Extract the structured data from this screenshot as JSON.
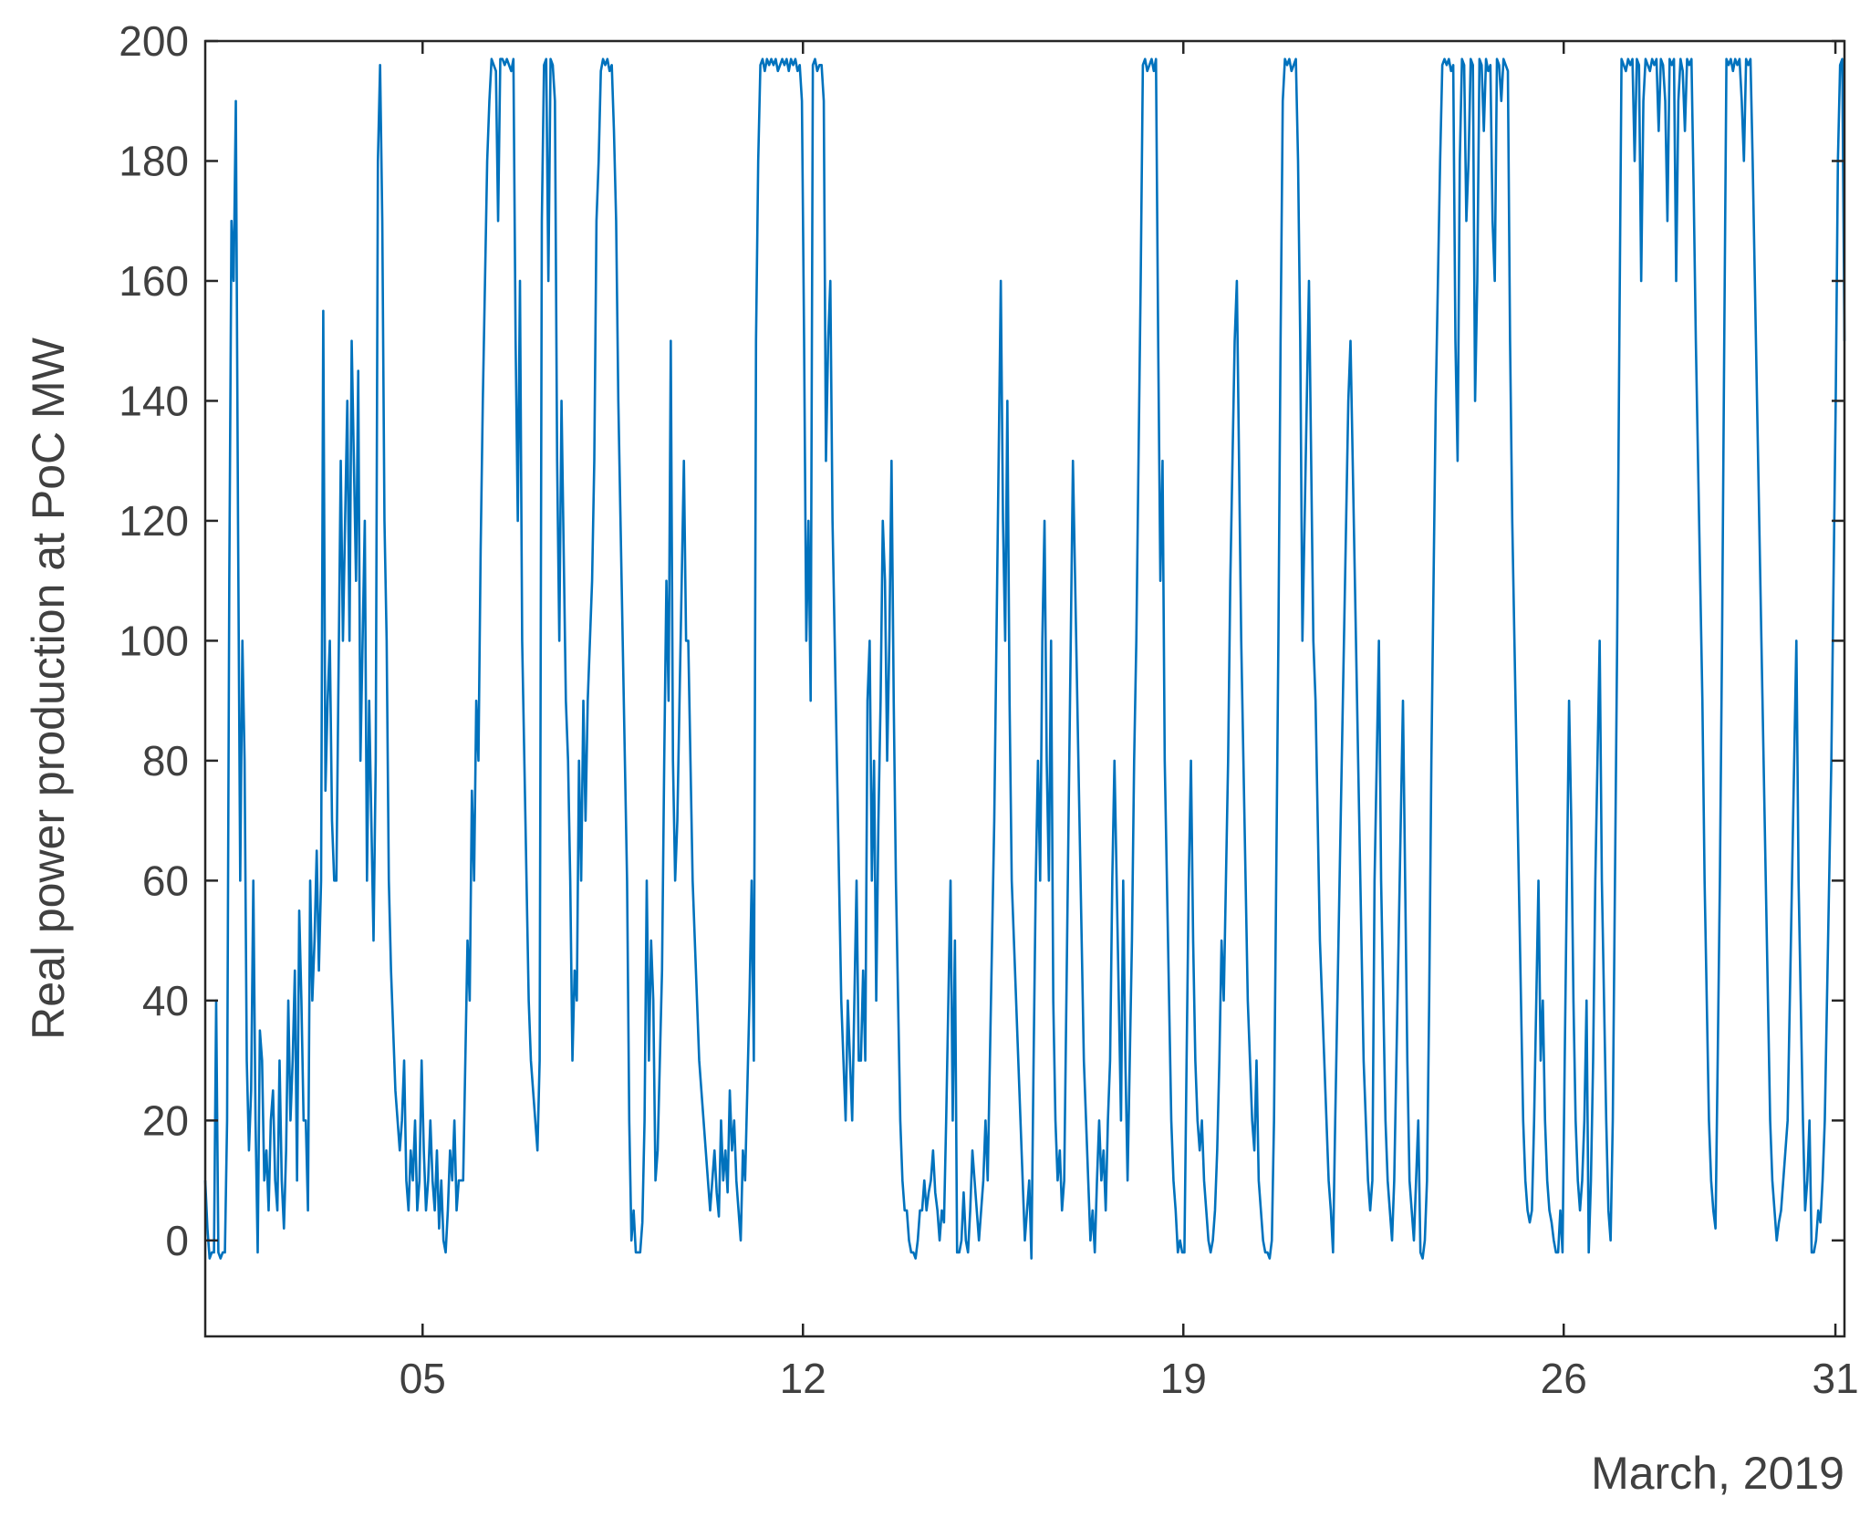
{
  "chart_data": {
    "type": "line",
    "title": "",
    "ylabel": "Real power production at PoC MW",
    "xlabel_secondary": "March, 2019",
    "ylim": [
      -16,
      200
    ],
    "xlim": [
      "2019-03-01",
      "2019-03-31T04:00"
    ],
    "y_ticks": [
      0,
      20,
      40,
      60,
      80,
      100,
      120,
      140,
      160,
      180,
      200
    ],
    "x_ticks": [
      {
        "date": "2019-03-05",
        "label": "05"
      },
      {
        "date": "2019-03-12",
        "label": "12"
      },
      {
        "date": "2019-03-19",
        "label": "19"
      },
      {
        "date": "2019-03-26",
        "label": "26"
      },
      {
        "date": "2019-03-31",
        "label": "31"
      }
    ],
    "grid": false,
    "box": true,
    "series": [
      {
        "color": "#0072BD",
        "x_start": "2019-03-01",
        "x_end": "2019-03-31T04:00",
        "values": [
          10,
          2,
          -3,
          -2,
          -2,
          40,
          -2,
          -3,
          -2,
          -2,
          20,
          110,
          170,
          160,
          190,
          120,
          60,
          100,
          80,
          30,
          15,
          25,
          60,
          20,
          -2,
          35,
          30,
          10,
          15,
          5,
          20,
          25,
          10,
          5,
          30,
          10,
          2,
          15,
          40,
          20,
          30,
          45,
          10,
          55,
          40,
          20,
          20,
          5,
          60,
          40,
          50,
          65,
          45,
          60,
          155,
          75,
          90,
          100,
          70,
          60,
          60,
          95,
          130,
          100,
          120,
          140,
          100,
          150,
          130,
          110,
          145,
          80,
          100,
          120,
          60,
          90,
          70,
          50,
          80,
          180,
          196,
          170,
          120,
          100,
          60,
          45,
          35,
          25,
          20,
          15,
          20,
          30,
          10,
          5,
          15,
          10,
          20,
          5,
          10,
          30,
          15,
          5,
          10,
          20,
          10,
          5,
          15,
          2,
          10,
          0,
          -2,
          5,
          15,
          10,
          20,
          5,
          10,
          10,
          10,
          30,
          50,
          40,
          75,
          60,
          90,
          80,
          115,
          140,
          160,
          180,
          190,
          197,
          196,
          195,
          170,
          197,
          197,
          196,
          197,
          196,
          195,
          197,
          150,
          120,
          160,
          100,
          80,
          60,
          40,
          30,
          25,
          20,
          15,
          30,
          170,
          196,
          197,
          160,
          197,
          196,
          190,
          130,
          100,
          140,
          115,
          90,
          80,
          60,
          30,
          45,
          40,
          80,
          60,
          90,
          70,
          90,
          100,
          110,
          130,
          170,
          180,
          195,
          197,
          196,
          197,
          195,
          196,
          185,
          170,
          140,
          120,
          100,
          80,
          60,
          20,
          0,
          5,
          -2,
          -2,
          -2,
          3,
          20,
          60,
          30,
          50,
          40,
          10,
          15,
          30,
          45,
          80,
          110,
          90,
          150,
          80,
          60,
          70,
          90,
          110,
          130,
          100,
          100,
          80,
          60,
          50,
          40,
          30,
          25,
          20,
          15,
          10,
          5,
          10,
          15,
          8,
          4,
          20,
          10,
          15,
          8,
          25,
          15,
          20,
          10,
          5,
          0,
          15,
          10,
          25,
          40,
          60,
          30,
          150,
          180,
          196,
          197,
          195,
          197,
          196,
          197,
          196,
          197,
          195,
          196,
          197,
          196,
          197,
          195,
          197,
          196,
          197,
          195,
          196,
          190,
          150,
          100,
          120,
          90,
          196,
          197,
          195,
          196,
          196,
          190,
          130,
          150,
          160,
          120,
          100,
          80,
          60,
          40,
          30,
          20,
          40,
          30,
          20,
          40,
          60,
          30,
          30,
          45,
          30,
          90,
          100,
          60,
          80,
          40,
          70,
          90,
          120,
          110,
          80,
          100,
          130,
          90,
          60,
          40,
          20,
          10,
          5,
          5,
          0,
          -2,
          -2,
          -3,
          0,
          5,
          5,
          10,
          5,
          8,
          10,
          15,
          8,
          5,
          0,
          5,
          3,
          20,
          40,
          60,
          20,
          50,
          -2,
          -2,
          0,
          8,
          0,
          -2,
          5,
          15,
          10,
          5,
          0,
          5,
          10,
          20,
          10,
          30,
          50,
          70,
          100,
          130,
          160,
          120,
          100,
          140,
          90,
          60,
          50,
          40,
          30,
          20,
          10,
          0,
          5,
          10,
          -3,
          30,
          60,
          80,
          60,
          100,
          120,
          80,
          60,
          100,
          40,
          20,
          10,
          15,
          5,
          10,
          40,
          70,
          100,
          130,
          110,
          90,
          70,
          50,
          30,
          20,
          10,
          0,
          5,
          -2,
          10,
          20,
          10,
          15,
          5,
          20,
          30,
          60,
          80,
          60,
          40,
          20,
          60,
          30,
          10,
          30,
          50,
          80,
          100,
          130,
          160,
          196,
          197,
          195,
          196,
          197,
          195,
          197,
          150,
          110,
          130,
          80,
          60,
          40,
          20,
          10,
          5,
          -2,
          0,
          -2,
          -2,
          30,
          60,
          80,
          50,
          30,
          20,
          15,
          20,
          10,
          5,
          0,
          -2,
          0,
          5,
          15,
          30,
          50,
          40,
          60,
          80,
          110,
          130,
          150,
          160,
          130,
          100,
          80,
          60,
          40,
          30,
          20,
          15,
          30,
          10,
          5,
          0,
          -2,
          -2,
          -3,
          0,
          20,
          60,
          100,
          150,
          190,
          197,
          196,
          197,
          195,
          196,
          197,
          180,
          150,
          100,
          120,
          140,
          160,
          130,
          100,
          90,
          70,
          50,
          40,
          30,
          20,
          10,
          5,
          -2,
          20,
          40,
          60,
          80,
          100,
          120,
          140,
          150,
          130,
          110,
          90,
          70,
          50,
          30,
          20,
          10,
          5,
          10,
          60,
          80,
          100,
          60,
          40,
          20,
          10,
          5,
          0,
          10,
          30,
          50,
          70,
          90,
          60,
          30,
          10,
          5,
          0,
          10,
          20,
          -2,
          -3,
          0,
          10,
          40,
          80,
          110,
          140,
          160,
          180,
          196,
          197,
          196,
          197,
          195,
          196,
          150,
          130,
          180,
          197,
          196,
          170,
          180,
          197,
          196,
          140,
          160,
          197,
          196,
          185,
          197,
          195,
          196,
          170,
          160,
          197,
          196,
          190,
          197,
          196,
          195,
          150,
          120,
          100,
          80,
          60,
          40,
          20,
          10,
          5,
          3,
          5,
          20,
          40,
          60,
          30,
          40,
          20,
          10,
          5,
          3,
          0,
          -2,
          -2,
          5,
          -2,
          30,
          60,
          90,
          70,
          40,
          20,
          10,
          5,
          10,
          20,
          40,
          -2,
          10,
          30,
          60,
          80,
          100,
          60,
          40,
          20,
          5,
          0,
          20,
          60,
          100,
          150,
          197,
          196,
          195,
          197,
          196,
          197,
          180,
          197,
          196,
          160,
          190,
          197,
          196,
          195,
          197,
          196,
          197,
          185,
          197,
          196,
          190,
          170,
          197,
          196,
          197,
          160,
          190,
          197,
          195,
          185,
          197,
          196,
          197,
          175,
          150,
          130,
          110,
          90,
          60,
          40,
          20,
          10,
          5,
          2,
          30,
          60,
          100,
          150,
          197,
          196,
          197,
          195,
          197,
          196,
          197,
          190,
          180,
          197,
          196,
          197,
          180,
          160,
          140,
          120,
          100,
          80,
          60,
          40,
          20,
          10,
          5,
          0,
          3,
          5,
          10,
          15,
          20,
          40,
          60,
          80,
          100,
          60,
          40,
          20,
          5,
          10,
          20,
          -2,
          -2,
          0,
          5,
          3,
          10,
          20,
          40,
          60,
          80,
          110,
          140,
          180,
          196,
          197,
          150
        ]
      }
    ]
  }
}
